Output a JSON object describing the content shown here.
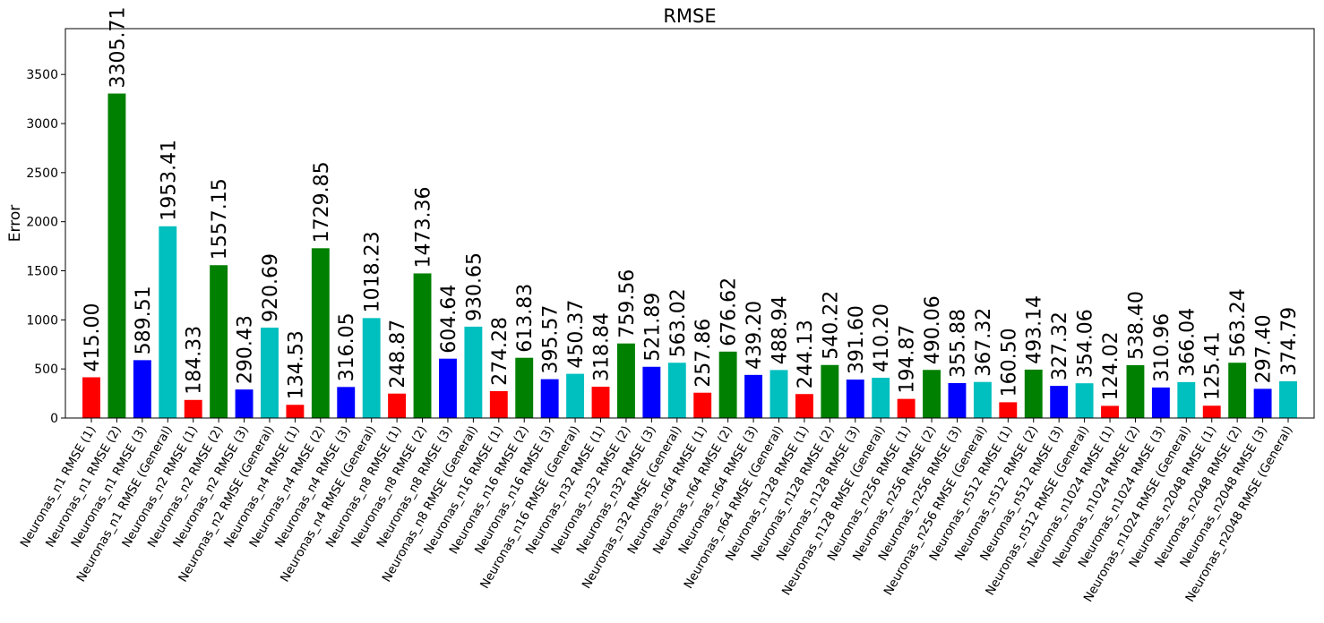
{
  "chart_data": {
    "type": "bar",
    "title": "RMSE",
    "xlabel": "",
    "ylabel": "Error",
    "ylim": [
      0,
      3967
    ],
    "yticks": [
      0,
      500,
      1000,
      1500,
      2000,
      2500,
      3000,
      3500
    ],
    "grid": false,
    "legend": "none",
    "categories": [
      "Neuronas_n1 RMSE (1)",
      "Neuronas_n1 RMSE (2)",
      "Neuronas_n1 RMSE (3)",
      "Neuronas_n1 RMSE (General)",
      "Neuronas_n2 RMSE (1)",
      "Neuronas_n2 RMSE (2)",
      "Neuronas_n2 RMSE (3)",
      "Neuronas_n2 RMSE (General)",
      "Neuronas_n4 RMSE (1)",
      "Neuronas_n4 RMSE (2)",
      "Neuronas_n4 RMSE (3)",
      "Neuronas_n4 RMSE (General)",
      "Neuronas_n8 RMSE (1)",
      "Neuronas_n8 RMSE (2)",
      "Neuronas_n8 RMSE (3)",
      "Neuronas_n8 RMSE (General)",
      "Neuronas_n16 RMSE (1)",
      "Neuronas_n16 RMSE (2)",
      "Neuronas_n16 RMSE (3)",
      "Neuronas_n16 RMSE (General)",
      "Neuronas_n32 RMSE (1)",
      "Neuronas_n32 RMSE (2)",
      "Neuronas_n32 RMSE (3)",
      "Neuronas_n32 RMSE (General)",
      "Neuronas_n64 RMSE (1)",
      "Neuronas_n64 RMSE (2)",
      "Neuronas_n64 RMSE (3)",
      "Neuronas_n64 RMSE (General)",
      "Neuronas_n128 RMSE (1)",
      "Neuronas_n128 RMSE (2)",
      "Neuronas_n128 RMSE (3)",
      "Neuronas_n128 RMSE (General)",
      "Neuronas_n256 RMSE (1)",
      "Neuronas_n256 RMSE (2)",
      "Neuronas_n256 RMSE (3)",
      "Neuronas_n256 RMSE (General)",
      "Neuronas_n512 RMSE (1)",
      "Neuronas_n512 RMSE (2)",
      "Neuronas_n512 RMSE (3)",
      "Neuronas_n512 RMSE (General)",
      "Neuronas_n1024 RMSE (1)",
      "Neuronas_n1024 RMSE (2)",
      "Neuronas_n1024 RMSE (3)",
      "Neuronas_n1024 RMSE (General)",
      "Neuronas_n2048 RMSE (1)",
      "Neuronas_n2048 RMSE (2)",
      "Neuronas_n2048 RMSE (3)",
      "Neuronas_n2048 RMSE (General)"
    ],
    "values": [
      415.0,
      3305.71,
      589.51,
      1953.41,
      184.33,
      1557.15,
      290.43,
      920.69,
      134.53,
      1729.85,
      316.05,
      1018.23,
      248.87,
      1473.36,
      604.64,
      930.65,
      274.28,
      613.83,
      395.57,
      450.37,
      318.84,
      759.56,
      521.89,
      563.02,
      257.86,
      676.62,
      439.2,
      488.94,
      244.13,
      540.22,
      391.6,
      410.2,
      194.87,
      490.06,
      355.88,
      367.32,
      160.5,
      493.14,
      327.32,
      354.06,
      124.02,
      538.4,
      310.96,
      366.04,
      125.41,
      563.24,
      297.4,
      374.79
    ],
    "value_labels": [
      "415.00",
      "3305.71",
      "589.51",
      "1953.41",
      "184.33",
      "1557.15",
      "290.43",
      "920.69",
      "134.53",
      "1729.85",
      "316.05",
      "1018.23",
      "248.87",
      "1473.36",
      "604.64",
      "930.65",
      "274.28",
      "613.83",
      "395.57",
      "450.37",
      "318.84",
      "759.56",
      "521.89",
      "563.02",
      "257.86",
      "676.62",
      "439.20",
      "488.94",
      "244.13",
      "540.22",
      "391.60",
      "410.20",
      "194.87",
      "490.06",
      "355.88",
      "367.32",
      "160.50",
      "493.14",
      "327.32",
      "354.06",
      "124.02",
      "538.40",
      "310.96",
      "366.04",
      "125.41",
      "563.24",
      "297.40",
      "374.79"
    ],
    "bar_colors_cycle": [
      "#ff0000",
      "#008000",
      "#0000ff",
      "#00bfbf"
    ]
  }
}
